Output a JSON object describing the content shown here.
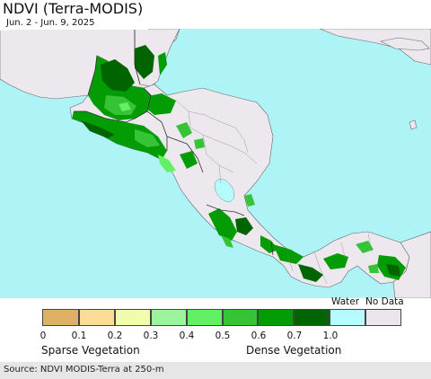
{
  "header": {
    "title": "NDVI (Terra-MODIS)",
    "date_range": "Jun. 2 - Jun. 9, 2025"
  },
  "legend": {
    "swatches": [
      {
        "color": "#deb166"
      },
      {
        "color": "#fddc95"
      },
      {
        "color": "#f1fdab"
      },
      {
        "color": "#9bf59a"
      },
      {
        "color": "#64f064"
      },
      {
        "color": "#36c336"
      },
      {
        "color": "#049c04"
      },
      {
        "color": "#006400"
      },
      {
        "color": "#b5fcfe"
      },
      {
        "color": "#ece6ec"
      }
    ],
    "ticks": [
      "0",
      "0.1",
      "0.2",
      "0.3",
      "0.4",
      "0.5",
      "0.6",
      "0.7",
      "1.0"
    ],
    "water_label": "Water",
    "nodata_label": "No Data",
    "sparse_label": "Sparse Vegetation",
    "dense_label": "Dense Vegetation"
  },
  "footer": {
    "source": "Source: NDVI MODIS-Terra at 250-m"
  },
  "map": {
    "ocean_color": "#aef4f7",
    "land_color": "#ece8ee",
    "border_color": "#555555"
  }
}
